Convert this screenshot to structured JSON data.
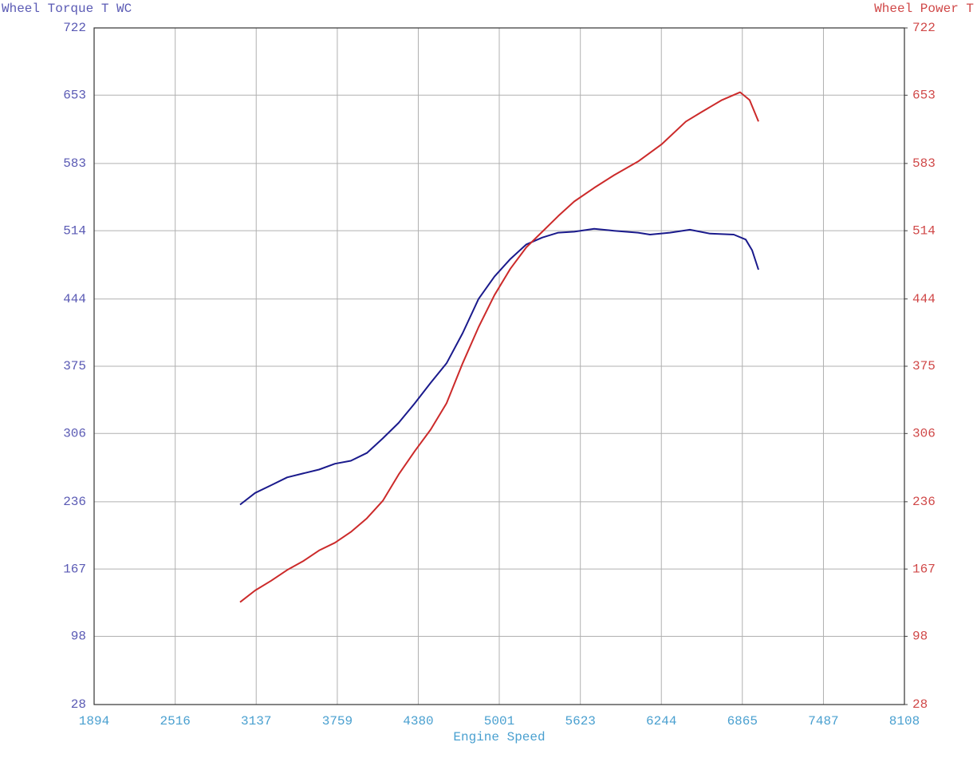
{
  "chart_data": {
    "type": "line",
    "y_label": "Wheel Torque T WC",
    "y2_label": "Wheel Power T",
    "x_label": "Engine Speed",
    "xlim": [
      1894,
      8108
    ],
    "xticks": [
      1894,
      2516,
      3137,
      3759,
      4380,
      5001,
      5623,
      6244,
      6865,
      7487,
      8108
    ],
    "ylim": [
      28,
      722
    ],
    "yticks": [
      28,
      98,
      167,
      236,
      306,
      375,
      444,
      514,
      583,
      653,
      722
    ],
    "y2lim": [
      28,
      722
    ],
    "y2ticks": [
      28,
      98,
      167,
      236,
      306,
      375,
      444,
      514,
      583,
      653,
      722
    ],
    "grid": true,
    "series": [
      {
        "name": "Wheel Torque T WC",
        "color": "#1a1a8c",
        "axis": "y",
        "x": [
          3013,
          3129,
          3252,
          3374,
          3496,
          3619,
          3741,
          3863,
          3986,
          4108,
          4230,
          4353,
          4475,
          4597,
          4720,
          4842,
          4964,
          5086,
          5209,
          5331,
          5453,
          5576,
          5729,
          5882,
          6065,
          6157,
          6310,
          6463,
          6616,
          6799,
          6891,
          6940,
          6989
        ],
        "values": [
          233,
          245,
          253,
          261,
          265,
          269,
          275,
          278,
          286,
          301,
          317,
          337,
          358,
          378,
          409,
          444,
          467,
          485,
          500,
          507,
          512,
          513,
          516,
          514,
          512,
          510,
          512,
          515,
          511,
          510,
          505,
          494,
          474
        ]
      },
      {
        "name": "Wheel Power T",
        "color": "#cc2a2a",
        "axis": "y2",
        "x": [
          3013,
          3129,
          3252,
          3374,
          3496,
          3619,
          3741,
          3863,
          3986,
          4108,
          4230,
          4353,
          4475,
          4597,
          4720,
          4842,
          4964,
          5086,
          5209,
          5331,
          5453,
          5576,
          5729,
          5882,
          6065,
          6249,
          6432,
          6555,
          6708,
          6848,
          6921,
          6989
        ],
        "values": [
          133,
          145,
          155,
          166,
          175,
          186,
          194,
          205,
          219,
          237,
          264,
          288,
          310,
          337,
          378,
          415,
          448,
          475,
          497,
          513,
          529,
          544,
          558,
          571,
          585,
          603,
          626,
          636,
          648,
          656,
          648,
          626
        ]
      }
    ]
  }
}
